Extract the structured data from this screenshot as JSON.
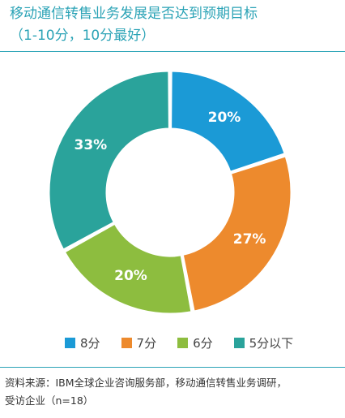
{
  "header": {
    "title_line1": "移动通信转售业务发展是否达到预期目标",
    "title_line2": "（1-10分，10分最好）"
  },
  "footer": {
    "source_line1": "资料来源：IBM全球企业咨询服务部，移动通信转售业务调研，",
    "source_line2": "受访企业（n=18）"
  },
  "chart_data": {
    "type": "pie",
    "donut": true,
    "title": "移动通信转售业务发展是否达到预期目标（1-10分，10分最好）",
    "categories": [
      "8分",
      "7分",
      "6分",
      "5分以下"
    ],
    "values": [
      20,
      27,
      20,
      33
    ],
    "labels": [
      "20%",
      "27%",
      "20%",
      "33%"
    ],
    "colors": [
      "#1b9ad6",
      "#ed8a2d",
      "#8dbd3f",
      "#2aa39b"
    ],
    "legend_position": "bottom"
  }
}
